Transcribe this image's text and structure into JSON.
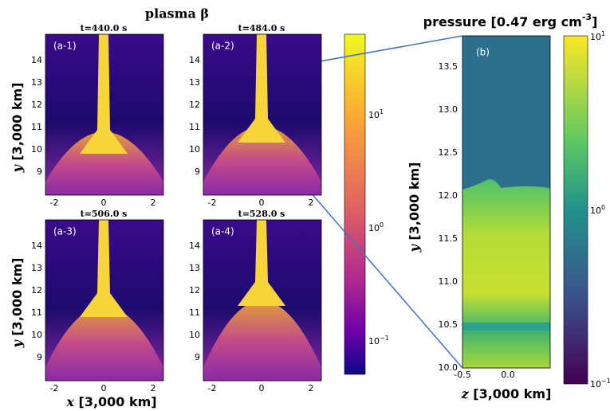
{
  "title": "plasma β",
  "panels_a": [
    {
      "label": "(a-1)",
      "time": "t=440.0 s"
    },
    {
      "label": "(a-2)",
      "time": "t=484.0 s"
    },
    {
      "label": "(a-3)",
      "time": "t=506.0 s"
    },
    {
      "label": "(a-4)",
      "time": "t=528.0 s"
    }
  ],
  "a_yticks": [
    "14",
    "13",
    "12",
    "11",
    "10",
    "9"
  ],
  "a_xticks": [
    "-2",
    "0",
    "2"
  ],
  "a_ylabel": {
    "var": "y",
    "unit": "[3,000 km]"
  },
  "a_xlabel": {
    "var": "x",
    "unit": "[3,000 km]"
  },
  "a_colorbar": [
    {
      "base": "10",
      "exp": "1"
    },
    {
      "base": "10",
      "exp": "0"
    },
    {
      "base": "10",
      "exp": "−1"
    }
  ],
  "b": {
    "title": "pressure [0.47 erg cm",
    "title_exp": "-3",
    "title_end": "]",
    "label": "(b)",
    "yticks": [
      "13.5",
      "13.0",
      "12.5",
      "12.0",
      "11.5",
      "11.0",
      "10.5",
      "10.0"
    ],
    "xticks": [
      "-0.5",
      "0.0"
    ],
    "ylabel": {
      "var": "y",
      "unit": "[3,000 km]"
    },
    "xlabel": {
      "var": "z",
      "unit": "[3,000 km]"
    },
    "colorbar": [
      {
        "base": "10",
        "exp": "1"
      },
      {
        "base": "10",
        "exp": "0"
      },
      {
        "base": "10",
        "exp": "−1"
      }
    ]
  }
}
